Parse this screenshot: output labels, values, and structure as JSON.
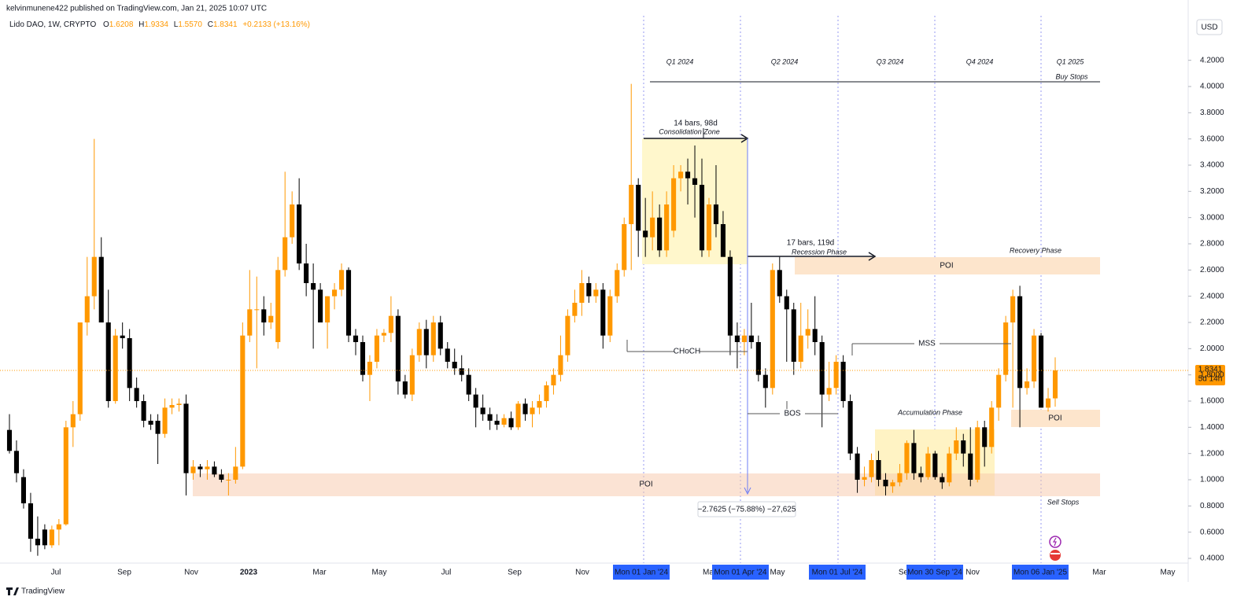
{
  "header": {
    "published": "kelvinmunene422 published on TradingView.com, Jan 21, 2025 10:07 UTC",
    "symbol": "Lido DAO, 1W, CRYPTO",
    "o_key": "O",
    "o": "1.6208",
    "h_key": "H",
    "h": "1.9334",
    "l_key": "L",
    "l": "1.5570",
    "c_key": "C",
    "c": "1.8341",
    "change": "+0.2133 (+13.16%)"
  },
  "currency": "USD",
  "price_tag": {
    "price": "1.8341",
    "countdown": "5d 14h"
  },
  "footer": {
    "brand": "TradingView"
  },
  "time_axis": [
    "Jul",
    "Sep",
    "Nov",
    "2023",
    "Mar",
    "May",
    "Jul",
    "Sep",
    "Nov",
    "Mon 01 Jan '24",
    "Ma",
    "Mon 01 Apr '24",
    "May",
    "Mon 01 Jul '24",
    "Se",
    "Mon 30 Sep '24",
    "Nov",
    "Mon 06 Jan '25",
    "Mar",
    "May"
  ],
  "quarters": [
    "Q1 2024",
    "Q2 2024",
    "Q3 2024",
    "Q4 2024",
    "Q1 2025"
  ],
  "annotations": {
    "buy_stops": "Buy Stops",
    "consolidation_bars": "14 bars, 98d",
    "consolidation": "Consolidation Zone",
    "recession_bars": "17 bars, 119d",
    "recession": "Recession Phase",
    "recovery": "Recovery Phase",
    "poi_upper": "POI",
    "choch": "CHoCH",
    "mss": "MSS",
    "bos": "BOS",
    "accumulation": "Accumulation Phase",
    "poi_mid": "POI",
    "poi_lower": "POI",
    "sell_stops": "Sell Stops",
    "measure": "−2.7625 (−75.88%) −27,625"
  },
  "chart_data": {
    "type": "candlestick",
    "up_color": "#ff9800",
    "down_color": "#000000",
    "ylim": [
      0.37,
      4.54
    ],
    "yticks": [
      {
        "value": 0.4,
        "label": "0.4000"
      },
      {
        "value": 0.6,
        "label": "0.6000"
      },
      {
        "value": 0.8,
        "label": "0.8000"
      },
      {
        "value": 1.0,
        "label": "1.0000"
      },
      {
        "value": 1.2,
        "label": "1.2000"
      },
      {
        "value": 1.4,
        "label": "1.4000"
      },
      {
        "value": 1.6,
        "label": "1.6000"
      },
      {
        "value": 1.8,
        "label": "1.8000"
      },
      {
        "value": 2.0,
        "label": "2.0000"
      },
      {
        "value": 2.2,
        "label": "2.2000"
      },
      {
        "value": 2.4,
        "label": "2.4000"
      },
      {
        "value": 2.6,
        "label": "2.6000"
      },
      {
        "value": 2.8,
        "label": "2.8000"
      },
      {
        "value": 3.0,
        "label": "3.0000"
      },
      {
        "value": 3.2,
        "label": "3.2000"
      },
      {
        "value": 3.4,
        "label": "3.4000"
      },
      {
        "value": 3.6,
        "label": "3.6000"
      },
      {
        "value": 3.8,
        "label": "3.8000"
      },
      {
        "value": 4.0,
        "label": "4.0000"
      },
      {
        "value": 4.2,
        "label": "4.2000"
      }
    ],
    "open": [
      1.38,
      1.22,
      1.02,
      0.82,
      0.55,
      0.62,
      0.5,
      0.62,
      0.66,
      1.4,
      1.5,
      2.2,
      2.4,
      2.7,
      2.2,
      1.6,
      2.1,
      2.08,
      1.7,
      1.6,
      1.45,
      1.45,
      1.35,
      1.55,
      1.57,
      1.58,
      1.05,
      1.1,
      1.08,
      1.1,
      1.04,
      1.0,
      1.0,
      1.1,
      2.1,
      2.3,
      2.3,
      2.2,
      2.05,
      2.6,
      2.85,
      3.1,
      2.65,
      2.5,
      2.45,
      2.2,
      2.4,
      2.45,
      2.6,
      2.1,
      2.05,
      1.8,
      1.9,
      2.1,
      2.12,
      2.25,
      1.75,
      1.65,
      1.95,
      2.15,
      1.95,
      2.2,
      2.0,
      1.9,
      1.85,
      1.8,
      1.65,
      1.55,
      1.5,
      1.45,
      1.42,
      1.47,
      1.4,
      1.58,
      1.5,
      1.55,
      1.6,
      1.72,
      1.8,
      1.95,
      2.25,
      2.35,
      2.5,
      2.4,
      2.45,
      2.1,
      2.4,
      2.6,
      2.95,
      3.25,
      2.9,
      2.85,
      3.0,
      2.75,
      2.9,
      3.3,
      3.35,
      3.3,
      3.25,
      2.75,
      3.1,
      2.95,
      2.7,
      2.1,
      2.05,
      2.1,
      2.05,
      1.8,
      1.7,
      2.6,
      2.4,
      2.3,
      1.9,
      2.1,
      2.15,
      2.05,
      1.65,
      1.7,
      1.9,
      1.6,
      1.2,
      1.0,
      1.02,
      1.15,
      1.0,
      0.95,
      0.98,
      1.05,
      1.28,
      1.05,
      1.02,
      1.2,
      1.02,
      0.98,
      1.2,
      1.3,
      1.2,
      1.0,
      1.4,
      1.25,
      1.55,
      1.8,
      2.2,
      2.4,
      1.7,
      1.75,
      2.1,
      1.55,
      1.6208
    ],
    "high": [
      1.5,
      1.3,
      1.08,
      0.9,
      0.72,
      0.66,
      0.65,
      0.7,
      1.45,
      1.6,
      2.2,
      2.7,
      3.6,
      2.85,
      2.45,
      2.15,
      2.2,
      2.15,
      1.78,
      1.65,
      1.5,
      1.5,
      1.62,
      1.62,
      1.62,
      1.65,
      1.15,
      1.12,
      1.15,
      1.14,
      1.08,
      1.05,
      1.25,
      2.2,
      2.6,
      2.55,
      2.4,
      2.35,
      2.7,
      3.35,
      3.2,
      3.3,
      2.8,
      2.65,
      2.5,
      2.4,
      2.5,
      2.65,
      2.62,
      2.15,
      2.1,
      1.95,
      2.15,
      2.15,
      2.4,
      2.3,
      1.8,
      2.0,
      2.2,
      2.22,
      2.25,
      2.25,
      2.05,
      2.0,
      1.95,
      1.85,
      1.7,
      1.65,
      1.55,
      1.5,
      1.5,
      1.52,
      1.6,
      1.62,
      1.6,
      1.65,
      1.75,
      1.85,
      2.1,
      2.3,
      2.45,
      2.6,
      2.55,
      2.5,
      2.5,
      2.45,
      2.65,
      3.0,
      4.02,
      3.3,
      3.15,
      3.2,
      3.1,
      3.2,
      3.4,
      3.4,
      3.45,
      3.55,
      3.45,
      3.15,
      3.4,
      3.05,
      2.75,
      2.2,
      2.15,
      2.35,
      2.1,
      1.85,
      2.65,
      2.7,
      2.45,
      2.35,
      2.35,
      2.3,
      2.4,
      2.1,
      1.9,
      1.95,
      1.95,
      1.65,
      1.25,
      1.1,
      1.2,
      1.22,
      1.05,
      1.0,
      1.12,
      1.3,
      1.38,
      1.1,
      1.25,
      1.22,
      1.05,
      1.25,
      1.4,
      1.35,
      1.4,
      1.45,
      1.45,
      1.6,
      1.85,
      2.25,
      2.45,
      2.48,
      1.85,
      2.15,
      2.12,
      1.7,
      1.9334
    ],
    "low": [
      1.2,
      0.98,
      0.78,
      0.45,
      0.42,
      0.47,
      0.48,
      0.5,
      0.65,
      1.25,
      1.45,
      2.1,
      2.3,
      2.2,
      1.55,
      1.58,
      2.0,
      1.6,
      1.55,
      1.4,
      1.38,
      1.12,
      1.32,
      1.5,
      1.52,
      0.88,
      1.0,
      1.02,
      1.0,
      1.02,
      0.98,
      0.88,
      0.97,
      1.08,
      2.05,
      1.85,
      2.1,
      2.15,
      2.0,
      2.55,
      2.8,
      2.6,
      2.4,
      2.0,
      2.2,
      2.0,
      2.3,
      2.4,
      2.05,
      1.95,
      1.75,
      1.6,
      1.85,
      2.05,
      2.05,
      1.65,
      1.62,
      1.6,
      1.9,
      1.85,
      1.9,
      1.95,
      1.85,
      1.8,
      1.75,
      1.6,
      1.4,
      1.45,
      1.38,
      1.38,
      1.4,
      1.38,
      1.38,
      1.45,
      1.4,
      1.5,
      1.55,
      1.65,
      1.75,
      1.9,
      2.2,
      2.25,
      2.35,
      2.35,
      2.0,
      2.05,
      2.35,
      2.55,
      2.6,
      2.7,
      2.7,
      2.75,
      2.7,
      2.7,
      2.85,
      3.2,
      3.1,
      3.0,
      2.7,
      2.7,
      2.85,
      2.7,
      1.95,
      1.85,
      1.95,
      2.0,
      1.75,
      1.55,
      1.65,
      2.35,
      1.9,
      1.8,
      1.85,
      2.0,
      1.95,
      1.4,
      1.6,
      1.65,
      1.55,
      1.15,
      0.9,
      0.95,
      0.98,
      0.95,
      0.88,
      0.9,
      0.95,
      1.0,
      1.0,
      0.98,
      1.0,
      1.0,
      0.93,
      0.95,
      1.15,
      1.1,
      0.95,
      0.98,
      1.1,
      1.2,
      1.45,
      1.75,
      1.55,
      1.4,
      1.65,
      1.7,
      1.55,
      1.52,
      1.557
    ],
    "close": [
      1.22,
      1.05,
      0.82,
      0.55,
      0.5,
      0.5,
      0.62,
      0.66,
      1.4,
      1.5,
      2.2,
      2.4,
      2.7,
      2.2,
      1.6,
      2.1,
      2.08,
      1.7,
      1.6,
      1.45,
      1.42,
      1.35,
      1.55,
      1.57,
      1.58,
      1.05,
      1.1,
      1.08,
      1.1,
      1.04,
      1.0,
      1.0,
      1.1,
      2.1,
      2.3,
      2.3,
      2.2,
      2.25,
      2.6,
      2.85,
      3.1,
      2.65,
      2.5,
      2.45,
      2.2,
      2.4,
      2.45,
      2.6,
      2.1,
      2.05,
      1.8,
      1.9,
      2.1,
      2.12,
      2.25,
      1.75,
      1.65,
      1.95,
      2.15,
      1.95,
      2.2,
      2.0,
      1.9,
      1.85,
      1.8,
      1.65,
      1.55,
      1.5,
      1.45,
      1.42,
      1.47,
      1.4,
      1.58,
      1.5,
      1.55,
      1.6,
      1.72,
      1.8,
      1.95,
      2.25,
      2.35,
      2.5,
      2.4,
      2.45,
      2.1,
      2.4,
      2.6,
      2.95,
      3.25,
      2.9,
      2.85,
      3.0,
      2.75,
      3.1,
      3.3,
      3.35,
      3.3,
      3.25,
      2.75,
      3.1,
      2.95,
      2.7,
      2.1,
      2.05,
      2.1,
      2.05,
      1.8,
      1.7,
      2.6,
      2.4,
      2.3,
      1.9,
      2.1,
      2.15,
      2.05,
      1.65,
      1.7,
      1.9,
      1.6,
      1.2,
      1.0,
      1.02,
      1.15,
      1.0,
      0.95,
      0.98,
      1.05,
      1.28,
      1.05,
      1.02,
      1.2,
      1.02,
      0.98,
      1.2,
      1.3,
      1.2,
      1.0,
      1.4,
      1.25,
      1.55,
      1.8,
      2.2,
      2.4,
      1.7,
      1.75,
      2.1,
      1.55,
      1.62,
      1.8341
    ]
  }
}
